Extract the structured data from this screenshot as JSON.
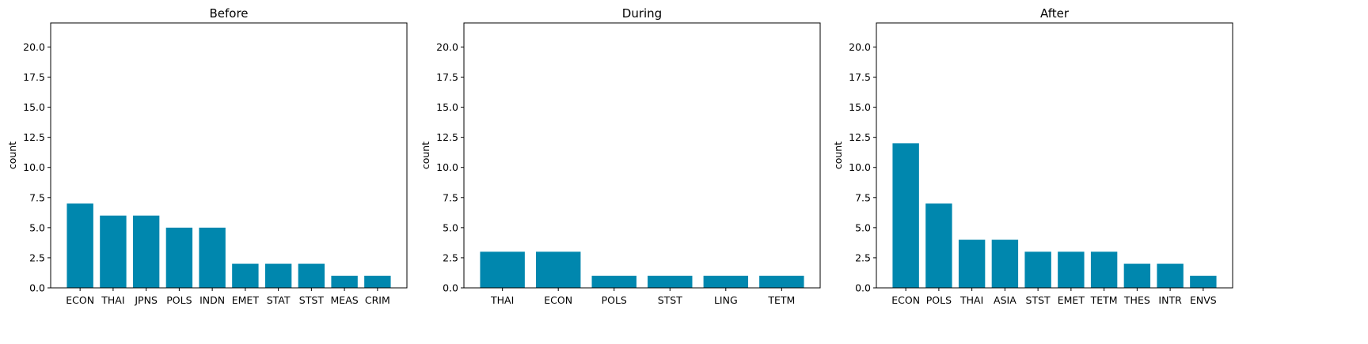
{
  "chart_data": [
    {
      "type": "bar",
      "title": "Before",
      "xlabel": "",
      "ylabel": "count",
      "categories": [
        "ECON",
        "THAI",
        "JPNS",
        "POLS",
        "INDN",
        "EMET",
        "STAT",
        "STST",
        "MEAS",
        "CRIM"
      ],
      "values": [
        7,
        6,
        6,
        5,
        5,
        2,
        2,
        2,
        1,
        1
      ],
      "ylim": [
        0,
        22
      ],
      "yticks": [
        "0.0",
        "2.5",
        "5.0",
        "7.5",
        "10.0",
        "12.5",
        "15.0",
        "17.5",
        "20.0"
      ],
      "grid": false,
      "color": "#0087ae"
    },
    {
      "type": "bar",
      "title": "During",
      "xlabel": "",
      "ylabel": "count",
      "categories": [
        "THAI",
        "ECON",
        "POLS",
        "STST",
        "LING",
        "TETM"
      ],
      "values": [
        3,
        3,
        1,
        1,
        1,
        1
      ],
      "ylim": [
        0,
        22
      ],
      "yticks": [
        "0.0",
        "2.5",
        "5.0",
        "7.5",
        "10.0",
        "12.5",
        "15.0",
        "17.5",
        "20.0"
      ],
      "grid": false,
      "color": "#0087ae"
    },
    {
      "type": "bar",
      "title": "After",
      "xlabel": "",
      "ylabel": "count",
      "categories": [
        "ECON",
        "POLS",
        "THAI",
        "ASIA",
        "STST",
        "EMET",
        "TETM",
        "THES",
        "INTR",
        "ENVS"
      ],
      "values": [
        12,
        7,
        4,
        4,
        3,
        3,
        3,
        2,
        2,
        1
      ],
      "ylim": [
        0,
        22
      ],
      "yticks": [
        "0.0",
        "2.5",
        "5.0",
        "7.5",
        "10.0",
        "12.5",
        "15.0",
        "17.5",
        "20.0"
      ],
      "grid": false,
      "color": "#0087ae"
    }
  ]
}
